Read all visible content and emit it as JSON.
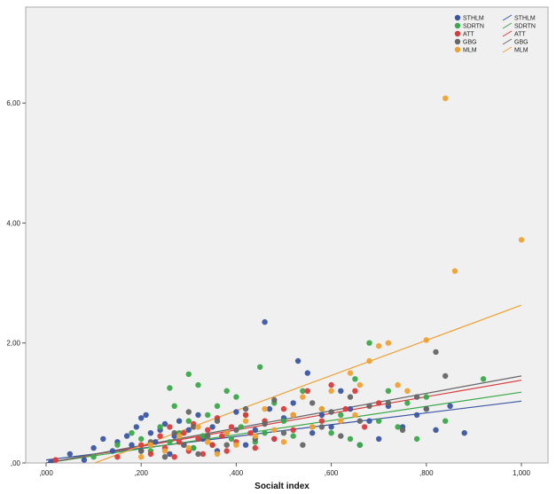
{
  "chart_data": {
    "type": "scatter",
    "title": "",
    "xlabel": "Socialt index",
    "ylabel": "",
    "xlim": [
      0,
      1.0
    ],
    "ylim": [
      0,
      7.6
    ],
    "grid": false,
    "legend_position": "top-right",
    "x_ticks": [
      ",000",
      ",200",
      ",400",
      ",600",
      ",800",
      "1,000"
    ],
    "y_ticks": [
      ",00",
      "2,00",
      "4,00",
      "6,00"
    ],
    "x_tick_values": [
      0,
      0.2,
      0.4,
      0.6,
      0.8,
      1.0
    ],
    "y_tick_values": [
      0,
      2,
      4,
      6
    ],
    "series": [
      {
        "name": "STHLM",
        "color": "#3b55a3",
        "fit_line": {
          "label": "STHLM",
          "from": [
            0.0,
            0.05
          ],
          "to": [
            1.0,
            1.03
          ]
        },
        "points": [
          [
            0.01,
            0.02
          ],
          [
            0.05,
            0.15
          ],
          [
            0.08,
            0.05
          ],
          [
            0.1,
            0.25
          ],
          [
            0.12,
            0.4
          ],
          [
            0.14,
            0.2
          ],
          [
            0.15,
            0.35
          ],
          [
            0.17,
            0.45
          ],
          [
            0.18,
            0.3
          ],
          [
            0.19,
            0.6
          ],
          [
            0.2,
            0.75
          ],
          [
            0.2,
            0.2
          ],
          [
            0.21,
            0.8
          ],
          [
            0.22,
            0.5
          ],
          [
            0.23,
            0.35
          ],
          [
            0.24,
            0.55
          ],
          [
            0.25,
            0.65
          ],
          [
            0.26,
            0.15
          ],
          [
            0.27,
            0.45
          ],
          [
            0.28,
            0.7
          ],
          [
            0.29,
            0.3
          ],
          [
            0.3,
            0.55
          ],
          [
            0.31,
            0.25
          ],
          [
            0.32,
            0.8
          ],
          [
            0.33,
            0.4
          ],
          [
            0.35,
            0.6
          ],
          [
            0.36,
            0.2
          ],
          [
            0.38,
            0.5
          ],
          [
            0.4,
            0.85
          ],
          [
            0.42,
            0.3
          ],
          [
            0.44,
            0.55
          ],
          [
            0.46,
            2.35
          ],
          [
            0.47,
            0.9
          ],
          [
            0.48,
            0.4
          ],
          [
            0.5,
            0.75
          ],
          [
            0.52,
            1.0
          ],
          [
            0.53,
            1.7
          ],
          [
            0.55,
            1.5
          ],
          [
            0.56,
            0.5
          ],
          [
            0.58,
            0.8
          ],
          [
            0.6,
            0.6
          ],
          [
            0.62,
            1.2
          ],
          [
            0.64,
            0.9
          ],
          [
            0.66,
            0.3
          ],
          [
            0.68,
            0.7
          ],
          [
            0.7,
            0.4
          ],
          [
            0.72,
            0.95
          ],
          [
            0.75,
            0.6
          ],
          [
            0.78,
            0.8
          ],
          [
            0.8,
            0.9
          ],
          [
            0.82,
            0.55
          ],
          [
            0.85,
            0.95
          ],
          [
            0.88,
            0.5
          ]
        ]
      },
      {
        "name": "SDRTN",
        "color": "#3aa84a",
        "fit_line": {
          "label": "SDRTN",
          "from": [
            0.0,
            0.0
          ],
          "to": [
            1.0,
            1.18
          ]
        },
        "points": [
          [
            0.1,
            0.1
          ],
          [
            0.15,
            0.3
          ],
          [
            0.18,
            0.5
          ],
          [
            0.2,
            0.4
          ],
          [
            0.22,
            0.2
          ],
          [
            0.24,
            0.6
          ],
          [
            0.26,
            0.35
          ],
          [
            0.27,
            0.95
          ],
          [
            0.28,
            0.5
          ],
          [
            0.3,
            0.7
          ],
          [
            0.31,
            0.25
          ],
          [
            0.32,
            1.3
          ],
          [
            0.33,
            0.45
          ],
          [
            0.34,
            0.8
          ],
          [
            0.35,
            0.3
          ],
          [
            0.36,
            0.95
          ],
          [
            0.38,
            1.2
          ],
          [
            0.39,
            0.4
          ],
          [
            0.4,
            1.1
          ],
          [
            0.41,
            0.6
          ],
          [
            0.42,
            0.8
          ],
          [
            0.44,
            0.35
          ],
          [
            0.45,
            1.6
          ],
          [
            0.46,
            0.5
          ],
          [
            0.48,
            1.0
          ],
          [
            0.5,
            0.7
          ],
          [
            0.52,
            0.45
          ],
          [
            0.54,
            1.2
          ],
          [
            0.56,
            0.6
          ],
          [
            0.58,
            0.9
          ],
          [
            0.6,
            0.5
          ],
          [
            0.62,
            0.8
          ],
          [
            0.64,
            0.4
          ],
          [
            0.65,
            1.4
          ],
          [
            0.66,
            0.3
          ],
          [
            0.68,
            2.0
          ],
          [
            0.7,
            0.7
          ],
          [
            0.72,
            1.2
          ],
          [
            0.74,
            0.6
          ],
          [
            0.76,
            1.0
          ],
          [
            0.78,
            0.4
          ],
          [
            0.8,
            1.1
          ],
          [
            0.84,
            0.7
          ],
          [
            0.92,
            1.4
          ],
          [
            0.3,
            1.48
          ],
          [
            0.26,
            1.25
          ]
        ]
      },
      {
        "name": "ATT",
        "color": "#d93b3b",
        "fit_line": {
          "label": "ATT",
          "from": [
            0.0,
            0.0
          ],
          "to": [
            1.0,
            1.38
          ]
        },
        "points": [
          [
            0.02,
            0.05
          ],
          [
            0.15,
            0.1
          ],
          [
            0.2,
            0.3
          ],
          [
            0.22,
            0.15
          ],
          [
            0.24,
            0.45
          ],
          [
            0.25,
            0.25
          ],
          [
            0.26,
            0.6
          ],
          [
            0.27,
            0.1
          ],
          [
            0.28,
            0.35
          ],
          [
            0.29,
            0.5
          ],
          [
            0.3,
            0.2
          ],
          [
            0.31,
            0.65
          ],
          [
            0.32,
            0.4
          ],
          [
            0.33,
            0.15
          ],
          [
            0.34,
            0.55
          ],
          [
            0.35,
            0.3
          ],
          [
            0.36,
            0.75
          ],
          [
            0.37,
            0.45
          ],
          [
            0.38,
            0.2
          ],
          [
            0.39,
            0.6
          ],
          [
            0.4,
            0.35
          ],
          [
            0.42,
            0.8
          ],
          [
            0.43,
            0.5
          ],
          [
            0.44,
            0.25
          ],
          [
            0.46,
            0.7
          ],
          [
            0.48,
            0.4
          ],
          [
            0.5,
            0.9
          ],
          [
            0.52,
            0.55
          ],
          [
            0.55,
            1.2
          ],
          [
            0.58,
            0.7
          ],
          [
            0.6,
            1.3
          ],
          [
            0.63,
            0.9
          ],
          [
            0.65,
            1.2
          ],
          [
            0.67,
            0.6
          ],
          [
            0.7,
            1.0
          ]
        ]
      },
      {
        "name": "GBG",
        "color": "#666666",
        "fit_line": {
          "label": "GBG",
          "from": [
            0.0,
            0.0
          ],
          "to": [
            1.0,
            1.45
          ]
        },
        "points": [
          [
            0.2,
            0.2
          ],
          [
            0.22,
            0.35
          ],
          [
            0.25,
            0.1
          ],
          [
            0.27,
            0.5
          ],
          [
            0.29,
            0.3
          ],
          [
            0.3,
            0.85
          ],
          [
            0.31,
            0.6
          ],
          [
            0.32,
            0.15
          ],
          [
            0.34,
            0.45
          ],
          [
            0.36,
            0.7
          ],
          [
            0.38,
            0.3
          ],
          [
            0.4,
            0.55
          ],
          [
            0.42,
            0.9
          ],
          [
            0.44,
            0.4
          ],
          [
            0.46,
            0.65
          ],
          [
            0.48,
            1.05
          ],
          [
            0.5,
            0.5
          ],
          [
            0.52,
            0.8
          ],
          [
            0.54,
            0.3
          ],
          [
            0.56,
            1.0
          ],
          [
            0.58,
            0.6
          ],
          [
            0.6,
            0.85
          ],
          [
            0.62,
            0.45
          ],
          [
            0.64,
            1.1
          ],
          [
            0.66,
            0.7
          ],
          [
            0.68,
            0.95
          ],
          [
            0.72,
            1.0
          ],
          [
            0.75,
            0.55
          ],
          [
            0.78,
            1.1
          ],
          [
            0.8,
            0.9
          ],
          [
            0.82,
            1.85
          ],
          [
            0.84,
            1.45
          ]
        ]
      },
      {
        "name": "MLM",
        "color": "#f0a030",
        "fit_line": {
          "label": "MLM",
          "from": [
            0.0,
            -0.3
          ],
          "to": [
            1.0,
            2.63
          ]
        },
        "points": [
          [
            0.2,
            0.1
          ],
          [
            0.22,
            0.3
          ],
          [
            0.25,
            0.2
          ],
          [
            0.28,
            0.45
          ],
          [
            0.3,
            0.25
          ],
          [
            0.32,
            0.6
          ],
          [
            0.34,
            0.35
          ],
          [
            0.36,
            0.15
          ],
          [
            0.38,
            0.5
          ],
          [
            0.4,
            0.3
          ],
          [
            0.42,
            0.7
          ],
          [
            0.44,
            0.45
          ],
          [
            0.46,
            0.9
          ],
          [
            0.48,
            0.55
          ],
          [
            0.5,
            0.35
          ],
          [
            0.52,
            0.8
          ],
          [
            0.54,
            1.1
          ],
          [
            0.56,
            0.6
          ],
          [
            0.58,
            0.9
          ],
          [
            0.6,
            1.2
          ],
          [
            0.62,
            0.7
          ],
          [
            0.64,
            1.5
          ],
          [
            0.66,
            1.3
          ],
          [
            0.68,
            1.7
          ],
          [
            0.7,
            1.95
          ],
          [
            0.72,
            2.0
          ],
          [
            0.74,
            1.3
          ],
          [
            0.76,
            1.2
          ],
          [
            0.8,
            2.05
          ],
          [
            0.84,
            6.08
          ],
          [
            0.86,
            3.2
          ],
          [
            1.0,
            3.72
          ],
          [
            0.65,
            0.8
          ]
        ]
      }
    ]
  }
}
